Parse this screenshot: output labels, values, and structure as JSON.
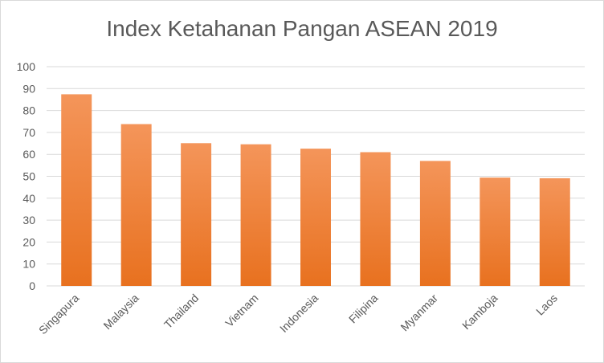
{
  "chart_data": {
    "type": "bar",
    "title": "Index Ketahanan Pangan ASEAN 2019",
    "categories": [
      "Singapura",
      "Malaysia",
      "Thailand",
      "Vietnam",
      "Indonesia",
      "Filipina",
      "Myanmar",
      "Kamboja",
      "Laos"
    ],
    "values": [
      87.4,
      73.8,
      65.1,
      64.6,
      62.6,
      61.0,
      57.0,
      49.4,
      49.1
    ],
    "ylim": [
      0,
      100
    ],
    "yticks": [
      0,
      10,
      20,
      30,
      40,
      50,
      60,
      70,
      80,
      90,
      100
    ],
    "grid": true,
    "legend": "none",
    "colors": {
      "bar_top": "#f4955a",
      "bar_bottom": "#e8711f",
      "grid": "#d9d9d9",
      "text": "#595959"
    }
  }
}
